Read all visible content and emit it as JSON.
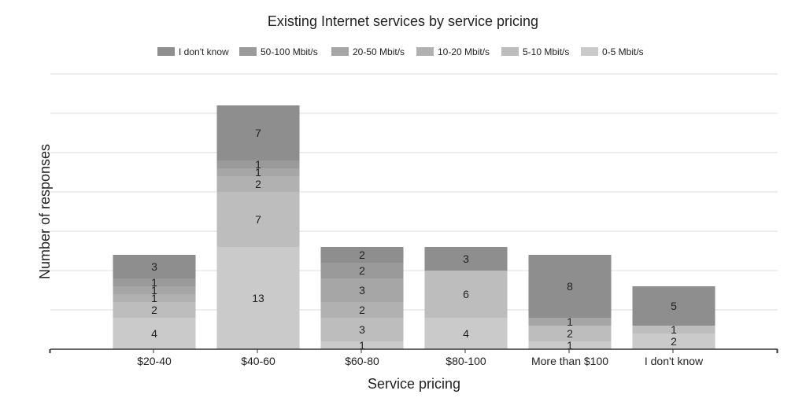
{
  "chart_data": {
    "type": "bar",
    "stacked": true,
    "title": "Existing Internet services by service pricing",
    "xlabel": "Service pricing",
    "ylabel": "Number of responses",
    "categories": [
      "$20-40",
      "$40-60",
      "$60-80",
      "$80-100",
      "More than $100",
      "I don't know"
    ],
    "ylim": [
      0,
      35
    ],
    "grid": true,
    "legend_position": "top",
    "series": [
      {
        "name": "0-5 Mbit/s",
        "color": "#cacaca",
        "values": [
          4,
          13,
          1,
          4,
          1,
          2
        ]
      },
      {
        "name": "5-10 Mbit/s",
        "color": "#bdbdbd",
        "values": [
          2,
          7,
          3,
          6,
          2,
          1
        ]
      },
      {
        "name": "10-20 Mbit/s",
        "color": "#b1b1b1",
        "values": [
          1,
          2,
          2,
          0,
          0,
          0
        ]
      },
      {
        "name": "20-50 Mbit/s",
        "color": "#a6a6a6",
        "values": [
          1,
          1,
          3,
          0,
          1,
          0
        ]
      },
      {
        "name": "50-100 Mbit/s",
        "color": "#9a9a9a",
        "values": [
          1,
          1,
          2,
          0,
          0,
          0
        ]
      },
      {
        "name": "I don't know",
        "color": "#8e8e8e",
        "values": [
          3,
          7,
          2,
          3,
          8,
          5
        ]
      }
    ]
  }
}
